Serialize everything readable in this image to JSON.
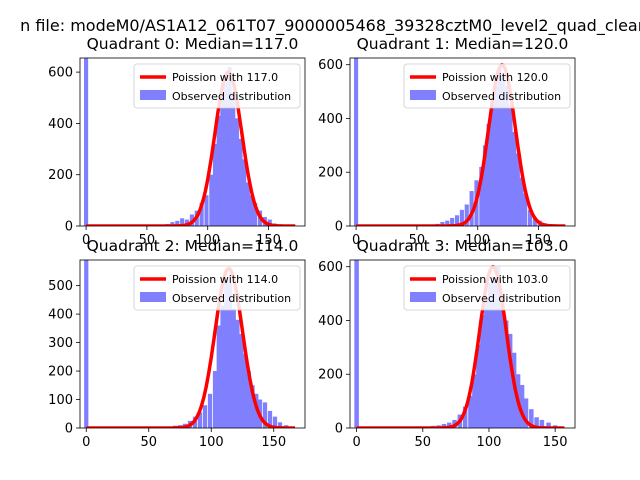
{
  "figure": {
    "suptitle": "n file: modeM0/AS1A12_061T07_9000005468_39328cztM0_level2_quad_clean"
  },
  "colors": {
    "hist": "#8080ff",
    "poisson": "#ff0000"
  },
  "chart_data": [
    {
      "type": "bar+line",
      "title": "Quadrant 0: Median=117.0",
      "xlim": [
        -5,
        180
      ],
      "ylim": [
        0,
        655
      ],
      "xticks": [
        0,
        50,
        100,
        150
      ],
      "yticks": [
        0,
        200,
        400,
        600
      ],
      "median": 117.0,
      "legend": {
        "line": "Poission with 117.0",
        "bars": "Observed distribution"
      },
      "line_peak": 600,
      "line_width": 11,
      "bins": [
        [
          0,
          700
        ],
        [
          58,
          2
        ],
        [
          63,
          4
        ],
        [
          67,
          8
        ],
        [
          71,
          15
        ],
        [
          75,
          20
        ],
        [
          79,
          30
        ],
        [
          83,
          25
        ],
        [
          87,
          45
        ],
        [
          91,
          60
        ],
        [
          95,
          90
        ],
        [
          99,
          120
        ],
        [
          103,
          200
        ],
        [
          106,
          320
        ],
        [
          109,
          430
        ],
        [
          112,
          520
        ],
        [
          115,
          560
        ],
        [
          118,
          620
        ],
        [
          121,
          520
        ],
        [
          124,
          420
        ],
        [
          127,
          340
        ],
        [
          130,
          260
        ],
        [
          133,
          170
        ],
        [
          136,
          120
        ],
        [
          139,
          90
        ],
        [
          143,
          60
        ],
        [
          147,
          35
        ],
        [
          151,
          25
        ],
        [
          155,
          10
        ],
        [
          160,
          5
        ],
        [
          166,
          2
        ]
      ]
    },
    {
      "type": "bar+line",
      "title": "Quadrant 1: Median=120.0",
      "xlim": [
        -5,
        180
      ],
      "ylim": [
        0,
        625
      ],
      "xticks": [
        0,
        50,
        100,
        150
      ],
      "yticks": [
        0,
        200,
        400,
        600
      ],
      "median": 120.0,
      "legend": {
        "line": "Poission with 120.0",
        "bars": "Observed distribution"
      },
      "line_peak": 600,
      "line_width": 11,
      "bins": [
        [
          0,
          700
        ],
        [
          40,
          5
        ],
        [
          60,
          3
        ],
        [
          67,
          8
        ],
        [
          71,
          15
        ],
        [
          75,
          20
        ],
        [
          79,
          30
        ],
        [
          83,
          40
        ],
        [
          87,
          60
        ],
        [
          91,
          80
        ],
        [
          95,
          130
        ],
        [
          99,
          170
        ],
        [
          103,
          220
        ],
        [
          106,
          300
        ],
        [
          109,
          380
        ],
        [
          112,
          460
        ],
        [
          115,
          520
        ],
        [
          118,
          590
        ],
        [
          121,
          560
        ],
        [
          124,
          520
        ],
        [
          127,
          450
        ],
        [
          130,
          350
        ],
        [
          133,
          270
        ],
        [
          136,
          180
        ],
        [
          139,
          120
        ],
        [
          143,
          60
        ],
        [
          147,
          30
        ],
        [
          151,
          20
        ],
        [
          155,
          10
        ],
        [
          160,
          5
        ]
      ]
    },
    {
      "type": "bar+line",
      "title": "Quadrant 2: Median=114.0",
      "xlim": [
        -5,
        175
      ],
      "ylim": [
        0,
        590
      ],
      "xticks": [
        0,
        50,
        100,
        150
      ],
      "yticks": [
        0,
        100,
        200,
        300,
        400,
        500
      ],
      "median": 114.0,
      "legend": {
        "line": "Poission with 114.0",
        "bars": "Observed distribution"
      },
      "line_peak": 560,
      "line_width": 11,
      "bins": [
        [
          0,
          700
        ],
        [
          60,
          3
        ],
        [
          67,
          5
        ],
        [
          71,
          8
        ],
        [
          75,
          10
        ],
        [
          79,
          15
        ],
        [
          83,
          25
        ],
        [
          87,
          40
        ],
        [
          91,
          55
        ],
        [
          95,
          80
        ],
        [
          99,
          120
        ],
        [
          103,
          200
        ],
        [
          106,
          360
        ],
        [
          109,
          430
        ],
        [
          112,
          520
        ],
        [
          115,
          510
        ],
        [
          118,
          420
        ],
        [
          121,
          380
        ],
        [
          124,
          330
        ],
        [
          127,
          260
        ],
        [
          130,
          200
        ],
        [
          133,
          150
        ],
        [
          136,
          120
        ],
        [
          139,
          100
        ],
        [
          143,
          90
        ],
        [
          147,
          60
        ],
        [
          151,
          40
        ],
        [
          155,
          20
        ],
        [
          160,
          10
        ],
        [
          165,
          5
        ]
      ]
    },
    {
      "type": "bar+line",
      "title": "Quadrant 3: Median=103.0",
      "xlim": [
        -5,
        165
      ],
      "ylim": [
        0,
        625
      ],
      "xticks": [
        0,
        50,
        100,
        150
      ],
      "yticks": [
        0,
        200,
        400,
        600
      ],
      "median": 103.0,
      "legend": {
        "line": "Poission with 103.0",
        "bars": "Observed distribution"
      },
      "line_peak": 600,
      "line_width": 10,
      "bins": [
        [
          0,
          700
        ],
        [
          30,
          5
        ],
        [
          45,
          3
        ],
        [
          52,
          5
        ],
        [
          58,
          8
        ],
        [
          62,
          10
        ],
        [
          66,
          15
        ],
        [
          70,
          20
        ],
        [
          74,
          30
        ],
        [
          78,
          50
        ],
        [
          82,
          80
        ],
        [
          86,
          120
        ],
        [
          89,
          200
        ],
        [
          92,
          310
        ],
        [
          95,
          420
        ],
        [
          98,
          480
        ],
        [
          101,
          540
        ],
        [
          104,
          560
        ],
        [
          107,
          600
        ],
        [
          110,
          500
        ],
        [
          113,
          400
        ],
        [
          116,
          350
        ],
        [
          119,
          280
        ],
        [
          122,
          200
        ],
        [
          125,
          160
        ],
        [
          128,
          110
        ],
        [
          132,
          70
        ],
        [
          136,
          40
        ],
        [
          140,
          30
        ],
        [
          145,
          20
        ],
        [
          150,
          10
        ],
        [
          155,
          5
        ]
      ]
    }
  ]
}
